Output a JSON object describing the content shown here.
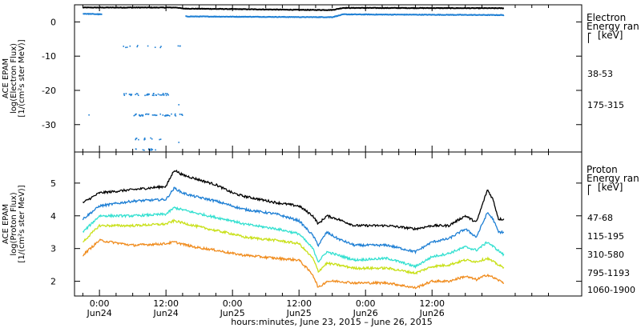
{
  "chart_data": [
    {
      "type": "scatter",
      "panel": "top",
      "ylabel_lines": [
        "ACE EPAM",
        "log(Electron Flux)",
        "[1/(cm²s ster MeV)]"
      ],
      "legend_title": [
        "Electron",
        "Energy ran",
        "[keV]"
      ],
      "ylim": [
        -38,
        5
      ],
      "yticks": [
        0,
        -10,
        -20,
        -30
      ],
      "grid": false,
      "series": [
        {
          "name": "38-53",
          "color": "#000000",
          "segments": [
            {
              "x": [
                -3.0,
                73.0
              ],
              "y": [
                4.2,
                4.1
              ],
              "note_profile": [
                [
                  -3.0,
                  4.2
                ],
                [
                  14.0,
                  4.2
                ],
                [
                  15.0,
                  3.9
                ],
                [
                  38.0,
                  3.5
                ],
                [
                  42.0,
                  3.5
                ],
                [
                  44.0,
                  4.1
                ],
                [
                  73.0,
                  4.0
                ]
              ]
            }
          ]
        },
        {
          "name": "175-315",
          "color": "#1e7fd4",
          "segments": [
            {
              "profile": [
                [
                  -3.0,
                  2.4
                ],
                [
                  0.5,
                  2.2
                ]
              ]
            },
            {
              "profile": [
                [
                  15.5,
                  1.6
                ],
                [
                  38.0,
                  1.4
                ],
                [
                  42.0,
                  1.4
                ],
                [
                  44.0,
                  2.2
                ],
                [
                  73.0,
                  2.0
                ]
              ]
            }
          ],
          "scatter_y_levels": [
            -7,
            -21,
            -27,
            -34,
            -37
          ]
        }
      ]
    },
    {
      "type": "scatter",
      "panel": "bottom",
      "ylabel_lines": [
        "ACE EPAM",
        "log(Proton Flux)",
        "[1/(cm²s ster MeV)]"
      ],
      "legend_title": [
        "Proton",
        "Energy ran",
        "[keV]"
      ],
      "ylim": [
        1.55,
        5.95
      ],
      "yticks": [
        2,
        3,
        4,
        5
      ],
      "grid": false,
      "series": [
        {
          "name": "47-68",
          "color": "#000000",
          "profile": [
            [
              -3,
              4.4
            ],
            [
              0,
              4.7
            ],
            [
              6,
              4.8
            ],
            [
              12,
              4.9
            ],
            [
              13.5,
              5.4
            ],
            [
              15,
              5.25
            ],
            [
              17,
              5.15
            ],
            [
              19,
              5.05
            ],
            [
              21,
              4.95
            ],
            [
              24,
              4.7
            ],
            [
              26,
              4.6
            ],
            [
              32,
              4.4
            ],
            [
              36,
              4.3
            ],
            [
              38.5,
              4.0
            ],
            [
              39.5,
              3.75
            ],
            [
              41,
              4.0
            ],
            [
              43,
              3.9
            ],
            [
              46,
              3.7
            ],
            [
              52,
              3.7
            ],
            [
              57,
              3.6
            ],
            [
              60,
              3.7
            ],
            [
              63,
              3.7
            ],
            [
              66,
              4.0
            ],
            [
              68,
              3.8
            ],
            [
              70,
              4.8
            ],
            [
              71,
              4.5
            ],
            [
              72,
              3.9
            ],
            [
              73,
              3.9
            ]
          ]
        },
        {
          "name": "115-195",
          "color": "#1e7fd4",
          "profile": [
            [
              -3,
              3.9
            ],
            [
              0,
              4.3
            ],
            [
              6,
              4.45
            ],
            [
              12,
              4.5
            ],
            [
              13.5,
              4.85
            ],
            [
              15,
              4.7
            ],
            [
              17,
              4.6
            ],
            [
              21,
              4.45
            ],
            [
              24,
              4.3
            ],
            [
              26,
              4.2
            ],
            [
              32,
              4.05
            ],
            [
              36,
              3.85
            ],
            [
              38.5,
              3.4
            ],
            [
              39.5,
              3.1
            ],
            [
              41,
              3.5
            ],
            [
              43,
              3.3
            ],
            [
              46,
              3.1
            ],
            [
              52,
              3.1
            ],
            [
              57,
              2.9
            ],
            [
              60,
              3.2
            ],
            [
              63,
              3.3
            ],
            [
              66,
              3.6
            ],
            [
              68,
              3.35
            ],
            [
              70,
              4.1
            ],
            [
              71,
              3.9
            ],
            [
              72,
              3.5
            ],
            [
              73,
              3.5
            ]
          ]
        },
        {
          "name": "310-580",
          "color": "#33e0d0",
          "profile": [
            [
              -3,
              3.5
            ],
            [
              0,
              4.0
            ],
            [
              6,
              4.0
            ],
            [
              12,
              4.05
            ],
            [
              13.5,
              4.25
            ],
            [
              17,
              4.1
            ],
            [
              21,
              3.95
            ],
            [
              24,
              3.85
            ],
            [
              26,
              3.75
            ],
            [
              32,
              3.6
            ],
            [
              36,
              3.45
            ],
            [
              38.5,
              3.0
            ],
            [
              39.5,
              2.6
            ],
            [
              41,
              2.9
            ],
            [
              43,
              2.8
            ],
            [
              46,
              2.65
            ],
            [
              52,
              2.7
            ],
            [
              57,
              2.45
            ],
            [
              60,
              2.75
            ],
            [
              63,
              2.85
            ],
            [
              66,
              3.05
            ],
            [
              68,
              2.95
            ],
            [
              70,
              3.2
            ],
            [
              73,
              2.8
            ]
          ]
        },
        {
          "name": "795-1193",
          "color": "#c8e018",
          "profile": [
            [
              -3,
              3.2
            ],
            [
              0,
              3.7
            ],
            [
              6,
              3.7
            ],
            [
              12,
              3.75
            ],
            [
              13.5,
              3.85
            ],
            [
              17,
              3.7
            ],
            [
              21,
              3.55
            ],
            [
              24,
              3.45
            ],
            [
              26,
              3.35
            ],
            [
              32,
              3.25
            ],
            [
              36,
              3.15
            ],
            [
              38.5,
              2.7
            ],
            [
              39.5,
              2.3
            ],
            [
              41,
              2.55
            ],
            [
              43,
              2.5
            ],
            [
              46,
              2.4
            ],
            [
              52,
              2.4
            ],
            [
              57,
              2.25
            ],
            [
              60,
              2.45
            ],
            [
              63,
              2.5
            ],
            [
              66,
              2.65
            ],
            [
              68,
              2.6
            ],
            [
              70,
              2.7
            ],
            [
              73,
              2.4
            ]
          ]
        },
        {
          "name": "1060-1900",
          "color": "#f08c1e",
          "profile": [
            [
              -3,
              2.8
            ],
            [
              0,
              3.25
            ],
            [
              6,
              3.1
            ],
            [
              12,
              3.15
            ],
            [
              13.5,
              3.2
            ],
            [
              17,
              3.05
            ],
            [
              21,
              2.95
            ],
            [
              24,
              2.85
            ],
            [
              26,
              2.8
            ],
            [
              32,
              2.7
            ],
            [
              36,
              2.65
            ],
            [
              38.5,
              2.2
            ],
            [
              39.5,
              1.8
            ],
            [
              41,
              2.0
            ],
            [
              43,
              2.0
            ],
            [
              46,
              1.95
            ],
            [
              52,
              1.95
            ],
            [
              57,
              1.8
            ],
            [
              60,
              2.0
            ],
            [
              63,
              2.0
            ],
            [
              66,
              2.15
            ],
            [
              68,
              2.05
            ],
            [
              70,
              2.2
            ],
            [
              73,
              1.95
            ]
          ]
        }
      ]
    }
  ],
  "xaxis": {
    "xlim": [
      -4.5,
      87
    ],
    "unit": "hours from 2015-06-24 00:00 UT",
    "ticks": [
      {
        "x": 0,
        "time": "0:00",
        "date": "Jun24"
      },
      {
        "x": 12,
        "time": "12:00",
        "date": "Jun24"
      },
      {
        "x": 24,
        "time": "0:00",
        "date": "Jun25"
      },
      {
        "x": 36,
        "time": "12:00",
        "date": "Jun25"
      },
      {
        "x": 48,
        "time": "0:00",
        "date": "Jun26"
      },
      {
        "x": 60,
        "time": "12:00",
        "date": "Jun26"
      }
    ],
    "label": "hours:minutes, June 23, 2015 – June 26, 2015"
  },
  "colors": {
    "axis": "#000000",
    "background": "#ffffff"
  }
}
